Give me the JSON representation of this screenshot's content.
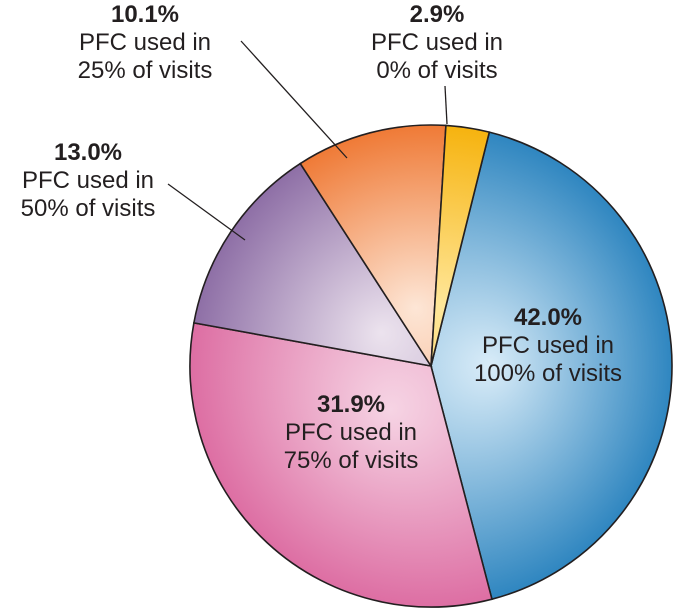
{
  "chart_data": {
    "type": "pie",
    "title": "",
    "slices": [
      {
        "value": 42.0,
        "pct_label": "42.0%",
        "line1": "PFC used in",
        "line2": "100% of visits",
        "colors": [
          "#d9ecf8",
          "#2f86c0"
        ],
        "label_inside": true
      },
      {
        "value": 31.9,
        "pct_label": "31.9%",
        "line1": "PFC used in",
        "line2": "75% of visits",
        "colors": [
          "#f6d4e4",
          "#dd6ea3"
        ],
        "label_inside": true
      },
      {
        "value": 13.0,
        "pct_label": "13.0%",
        "line1": "PFC used in",
        "line2": "50% of visits",
        "colors": [
          "#ece3ee",
          "#8e6fa6"
        ],
        "label_inside": false
      },
      {
        "value": 10.1,
        "pct_label": "10.1%",
        "line1": "PFC used in",
        "line2": "25% of visits",
        "colors": [
          "#fde6d6",
          "#ef7a36"
        ],
        "label_inside": false
      },
      {
        "value": 2.9,
        "pct_label": "2.9%",
        "line1": "PFC used in",
        "line2": "0% of visits",
        "colors": [
          "#ffe79a",
          "#f6b30f"
        ],
        "label_inside": false
      }
    ]
  }
}
